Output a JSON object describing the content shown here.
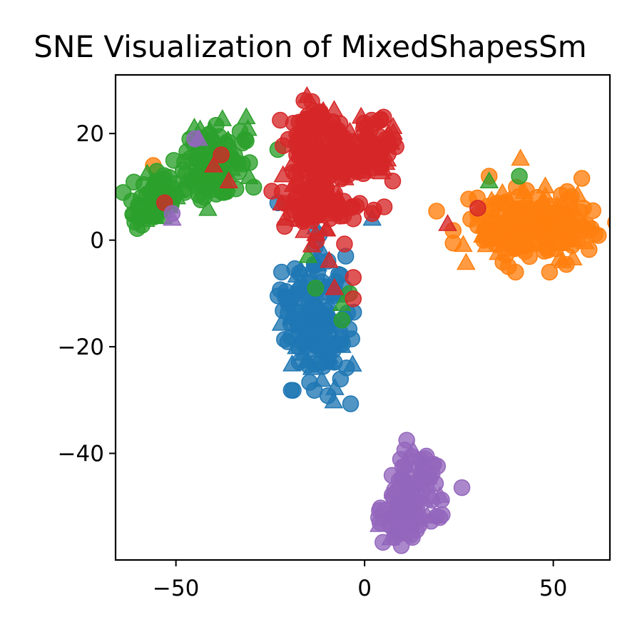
{
  "chart_data": {
    "type": "scatter",
    "title": "SNE Visualization of MixedShapesSm",
    "xlabel": "",
    "ylabel": "",
    "xlim": [
      -66,
      65
    ],
    "ylim": [
      -60,
      31
    ],
    "x_ticks": [
      -50,
      0,
      50
    ],
    "y_ticks": [
      20,
      0,
      -20,
      -40
    ],
    "x_tick_labels": [
      "−50",
      "0",
      "50"
    ],
    "y_tick_labels": [
      "20",
      "0",
      "−20",
      "−40"
    ],
    "grid": false,
    "legend": "none",
    "marker_shapes": [
      "circle",
      "triangle"
    ],
    "series": [
      {
        "color": "#1f77b4",
        "clusters": [
          {
            "cx": -13,
            "cy": -15,
            "sx": 4,
            "sy": 6,
            "n": 170,
            "seed": 11
          }
        ],
        "points": [
          {
            "x": -23,
            "y": 7,
            "shape": "circle"
          },
          {
            "x": -22,
            "y": -6,
            "shape": "circle"
          },
          {
            "x": 2,
            "y": 4,
            "shape": "triangle"
          },
          {
            "x": -12,
            "y": 1,
            "shape": "circle"
          },
          {
            "x": -5,
            "y": -3,
            "shape": "circle"
          },
          {
            "x": -10,
            "y": -23,
            "shape": "triangle"
          },
          {
            "x": -14,
            "y": -24,
            "shape": "triangle"
          },
          {
            "x": -16,
            "y": 4,
            "shape": "circle"
          }
        ]
      },
      {
        "color": "#ff7f0e",
        "clusters": [
          {
            "cx": 44,
            "cy": 3,
            "sx": 8,
            "sy": 3.5,
            "n": 230,
            "seed": 22
          }
        ],
        "points": [
          {
            "x": -56,
            "y": 14,
            "shape": "circle"
          },
          {
            "x": 33,
            "y": 12,
            "shape": "circle"
          },
          {
            "x": 40,
            "y": -6,
            "shape": "circle"
          },
          {
            "x": 49,
            "y": -6,
            "shape": "circle"
          },
          {
            "x": 55,
            "y": -1,
            "shape": "circle"
          },
          {
            "x": 58,
            "y": 6,
            "shape": "circle"
          }
        ]
      },
      {
        "color": "#2ca02c",
        "clusters": [
          {
            "cx": -55,
            "cy": 8,
            "sx": 3,
            "sy": 2.5,
            "n": 70,
            "seed": 33
          },
          {
            "cx": -40,
            "cy": 14,
            "sx": 4,
            "sy": 3.5,
            "n": 110,
            "seed": 44
          }
        ],
        "points": [
          {
            "x": -23,
            "y": 17,
            "shape": "circle"
          },
          {
            "x": -18,
            "y": 18,
            "shape": "circle"
          },
          {
            "x": 33,
            "y": 11,
            "shape": "triangle"
          },
          {
            "x": 41,
            "y": 12,
            "shape": "circle"
          },
          {
            "x": -13,
            "y": -9,
            "shape": "circle"
          },
          {
            "x": -6,
            "y": -15,
            "shape": "circle"
          },
          {
            "x": -6,
            "y": -12,
            "shape": "triangle"
          },
          {
            "x": -15,
            "y": -3,
            "shape": "triangle"
          },
          {
            "x": -4,
            "y": -10,
            "shape": "circle"
          },
          {
            "x": -59,
            "y": 6,
            "shape": "circle"
          }
        ]
      },
      {
        "color": "#d62728",
        "clusters": [
          {
            "cx": -12,
            "cy": 17,
            "sx": 4,
            "sy": 4.5,
            "n": 110,
            "seed": 55
          },
          {
            "cx": -12,
            "cy": 7,
            "sx": 5,
            "sy": 3.5,
            "n": 100,
            "seed": 66
          },
          {
            "cx": 0,
            "cy": 17,
            "sx": 4.5,
            "sy": 3,
            "n": 100,
            "seed": 77
          }
        ],
        "points": [
          {
            "x": -14,
            "y": 26,
            "shape": "circle"
          },
          {
            "x": -38,
            "y": 16,
            "shape": "circle"
          },
          {
            "x": -40,
            "y": 14,
            "shape": "triangle"
          },
          {
            "x": -36,
            "y": 11,
            "shape": "triangle"
          },
          {
            "x": -53,
            "y": 7,
            "shape": "circle"
          },
          {
            "x": 22,
            "y": 3,
            "shape": "triangle"
          },
          {
            "x": 30,
            "y": 6,
            "shape": "circle"
          },
          {
            "x": -8,
            "y": -9,
            "shape": "triangle"
          },
          {
            "x": -3,
            "y": -7,
            "shape": "circle"
          },
          {
            "x": -3,
            "y": -11,
            "shape": "circle"
          },
          {
            "x": -14,
            "y": -1,
            "shape": "triangle"
          },
          {
            "x": 2,
            "y": 5,
            "shape": "circle"
          },
          {
            "x": -18,
            "y": 16,
            "shape": "circle"
          },
          {
            "x": 3,
            "y": 22,
            "shape": "circle"
          }
        ]
      },
      {
        "color": "#9467bd",
        "clusters": [
          {
            "cx": 14,
            "cy": -47,
            "sx": 3,
            "sy": 4,
            "n": 80,
            "seed": 88
          },
          {
            "cx": 10,
            "cy": -52,
            "sx": 3.5,
            "sy": 2,
            "n": 60,
            "seed": 99
          }
        ],
        "points": [
          {
            "x": -45,
            "y": 19,
            "shape": "circle"
          },
          {
            "x": -44,
            "y": 19,
            "shape": "triangle"
          },
          {
            "x": -51,
            "y": 5,
            "shape": "circle"
          },
          {
            "x": -51,
            "y": 4,
            "shape": "triangle"
          },
          {
            "x": 20,
            "y": -48,
            "shape": "triangle"
          },
          {
            "x": 8,
            "y": -55,
            "shape": "circle"
          },
          {
            "x": 16,
            "y": -41,
            "shape": "circle"
          }
        ]
      }
    ]
  }
}
